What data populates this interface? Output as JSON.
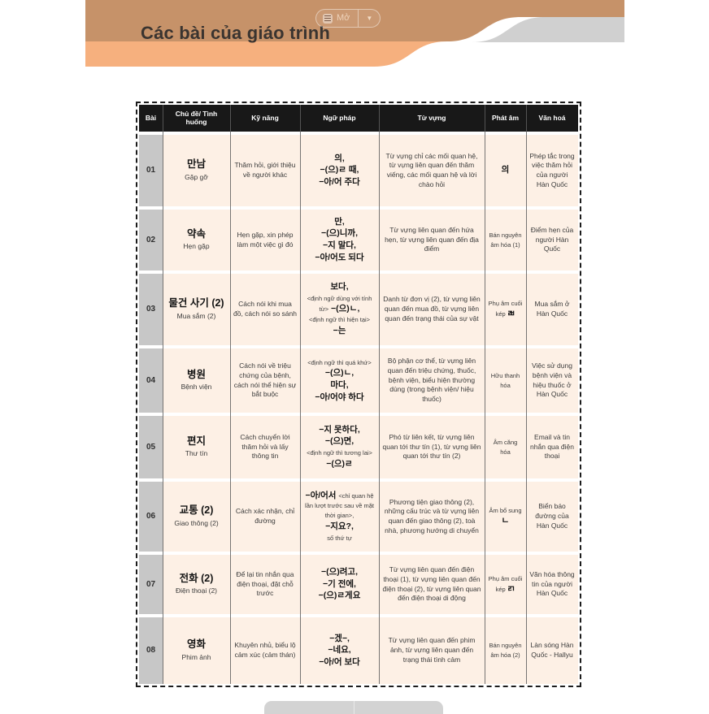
{
  "page": {
    "title": "Các bài của giáo trình",
    "toolbar": {
      "open_label": "Mở"
    }
  },
  "colors": {
    "header_brown": "#c69269",
    "header_orange": "#f6b07e",
    "header_gray": "#d0d0d0",
    "table_header_bg": "#181818",
    "row_bg": "#fdf0e5",
    "lesson_cell_bg": "#c7c7c7"
  },
  "table": {
    "columns": [
      "Bài",
      "Chủ đề/ Tình huống",
      "Kỹ năng",
      "Ngữ pháp",
      "Từ vựng",
      "Phát âm",
      "Văn hoá"
    ],
    "rows": [
      {
        "no": "01",
        "topic_ko": "만남",
        "topic_vi": "Gặp gỡ",
        "skill": "Thăm hỏi, giới thiệu về người khác",
        "grammar": "의,\n−(으)ㄹ 때,\n−아/어 주다",
        "vocab": "Từ vựng chỉ các mối quan hệ, từ vựng liên quan đến thăm viếng, các mối quan hệ và lời chào hỏi",
        "pron": "의",
        "culture": "Phép tắc trong việc thăm hỏi của người Hàn Quốc"
      },
      {
        "no": "02",
        "topic_ko": "약속",
        "topic_vi": "Hẹn gặp",
        "skill": "Hẹn gặp, xin phép làm một việc gì đó",
        "grammar": "만,\n−(으)니까,\n−지 말다,\n−아/어도 되다",
        "vocab": "Từ vựng liên quan đến hứa hẹn, từ vựng liên quan đến địa điểm",
        "pron": "Bán nguyên âm hóa (1)",
        "culture": "Điểm hẹn của người Hàn Quốc"
      },
      {
        "no": "03",
        "topic_ko": "물건 사기 (2)",
        "topic_vi": "Mua sắm (2)",
        "skill": "Cách nói khi mua đồ, cách nói so sánh",
        "grammar": "보다,\n<định ngữ dùng với tính từ> −(으)ㄴ,\n<định ngữ thì hiện tại>\n−는",
        "vocab": "Danh từ đơn vị (2), từ vựng liên quan đến mua đồ, từ vựng liên quan đến trạng thái của sự vật",
        "pron": "Phụ âm cuối kép ㄼ",
        "culture": "Mua sắm ở Hàn Quốc"
      },
      {
        "no": "04",
        "topic_ko": "병원",
        "topic_vi": "Bệnh viện",
        "skill": "Cách nói về triệu chứng của bệnh, cách nói thể hiện sự bắt buộc",
        "grammar": "<định ngữ thì quá khứ>\n−(으)ㄴ,\n마다,\n−아/어야 하다",
        "vocab": "Bộ phận cơ thể, từ vựng liên quan đến triệu chứng, thuốc, bệnh viện, biểu hiện thường dùng (trong bệnh viện/ hiệu thuốc)",
        "pron": "Hữu thanh hóa",
        "culture": "Việc sử dụng bệnh viện và hiệu thuốc ở Hàn Quốc"
      },
      {
        "no": "05",
        "topic_ko": "편지",
        "topic_vi": "Thư tín",
        "skill": "Cách chuyển lời thăm hỏi và lấy thông tin",
        "grammar": "−지 못하다,\n−(으)면,\n<định ngữ thì tương lai>\n−(으)ㄹ",
        "vocab": "Phó từ liên kết, từ vựng liên quan tới thư tín (1), từ vựng liên quan tới thư tín (2)",
        "pron": "Âm căng hóa",
        "culture": "Email và tin nhắn qua điện thoại"
      },
      {
        "no": "06",
        "topic_ko": "교통 (2)",
        "topic_vi": "Giao thông (2)",
        "skill": "Cách xác nhận, chỉ đường",
        "grammar": "−아/어서 <chỉ quan hệ lần lượt trước sau về mặt thời gian>,\n−지요?,\nsố thứ tự",
        "vocab": "Phương tiện giao thông (2), những cấu trúc và từ vựng liên quan đến giao thông (2), toà nhà, phương hướng di chuyển",
        "pron": "Âm bổ sung ㄴ",
        "culture": "Biển báo đường của Hàn Quốc"
      },
      {
        "no": "07",
        "topic_ko": "전화 (2)",
        "topic_vi": "Điện thoại (2)",
        "skill": "Để lại tin nhắn qua điện thoại, đặt chỗ trước",
        "grammar": "−(으)려고,\n−기 전에,\n−(으)ㄹ게요",
        "vocab": "Từ vựng liên quan đến điện thoại (1), từ vựng liên quan đến điện thoại (2), từ vựng liên quan đến điện thoại di động",
        "pron": "Phụ âm cuối kép ㄺ",
        "culture": "Văn hóa thông tin của người Hàn Quốc"
      },
      {
        "no": "08",
        "topic_ko": "영화",
        "topic_vi": "Phim ảnh",
        "skill": "Khuyên nhủ, biểu lộ cảm xúc (cảm thán)",
        "grammar": "−겠−,\n−네요,\n−아/어 보다",
        "vocab": "Từ vựng liên quan đến phim ảnh, từ vựng liên quan đến trạng thái tình cảm",
        "pron": "Bán nguyên âm hóa (2)",
        "culture": "Làn sóng Hàn Quốc - Hallyu"
      }
    ]
  }
}
